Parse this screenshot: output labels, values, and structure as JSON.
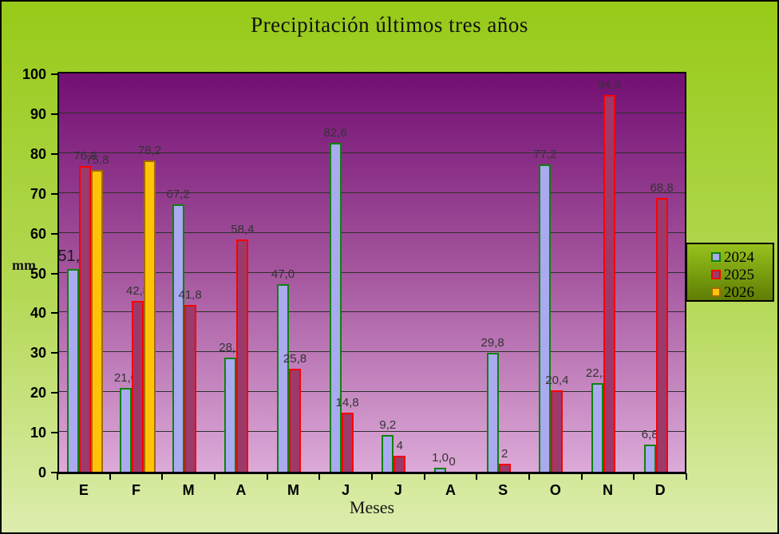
{
  "title": "Precipitación últimos tres años",
  "chart_data": {
    "type": "bar",
    "title": "Precipitación últimos tres años",
    "xlabel": "Meses",
    "ylabel": "mm",
    "ylim": [
      0,
      100
    ],
    "y_tick_step": 10,
    "y_tick_labels": [
      "0",
      "10",
      "20",
      "30",
      "40",
      "50",
      "60",
      "70",
      "80",
      "90",
      "100"
    ],
    "grid": true,
    "legend_position": "right",
    "categories": [
      "E",
      "F",
      "M",
      "A",
      "M",
      "J",
      "J",
      "A",
      "S",
      "O",
      "N",
      "D"
    ],
    "series": [
      {
        "name": "2024",
        "fill": "#aaaaf0",
        "border": "#0c830c",
        "values": [
          51.0,
          21.0,
          67.2,
          28.6,
          47.0,
          82.6,
          9.2,
          1.0,
          29.8,
          77.2,
          22.2,
          6.8
        ],
        "labels": [
          "51,0",
          "21,0",
          "67,2",
          "28,6",
          "47,0",
          "82,6",
          "9,2",
          "1,0",
          "29,8",
          "77,2",
          "22,2",
          "6,8"
        ]
      },
      {
        "name": "2025",
        "fill": "#9c3a6b",
        "border": "#fa0000",
        "values": [
          76.8,
          42.8,
          41.8,
          58.4,
          25.8,
          14.8,
          4,
          0,
          2,
          20.4,
          94.6,
          68.8
        ],
        "labels": [
          "76,8",
          "42,8",
          "41,8",
          "58,4",
          "25,8",
          "14,8",
          "4",
          "0",
          "2",
          "20,4",
          "94,6",
          "68,8"
        ]
      },
      {
        "name": "2026",
        "fill": "#ffc408",
        "border": "#a36908",
        "values": [
          75.8,
          78.2,
          null,
          null,
          null,
          null,
          null,
          null,
          null,
          null,
          null,
          null
        ],
        "labels": [
          "75,8",
          "78,2",
          null,
          null,
          null,
          null,
          null,
          null,
          null,
          null,
          null,
          null
        ]
      }
    ],
    "large_labels": [
      [
        0,
        0
      ]
    ]
  },
  "colors": {
    "background_top": "#97ca18",
    "background_bottom": "#ddedae",
    "plot_top": "#730f73",
    "plot_bottom": "#dcaad8",
    "legend_top": "#97c21d",
    "legend_bottom": "#5e7d04"
  }
}
